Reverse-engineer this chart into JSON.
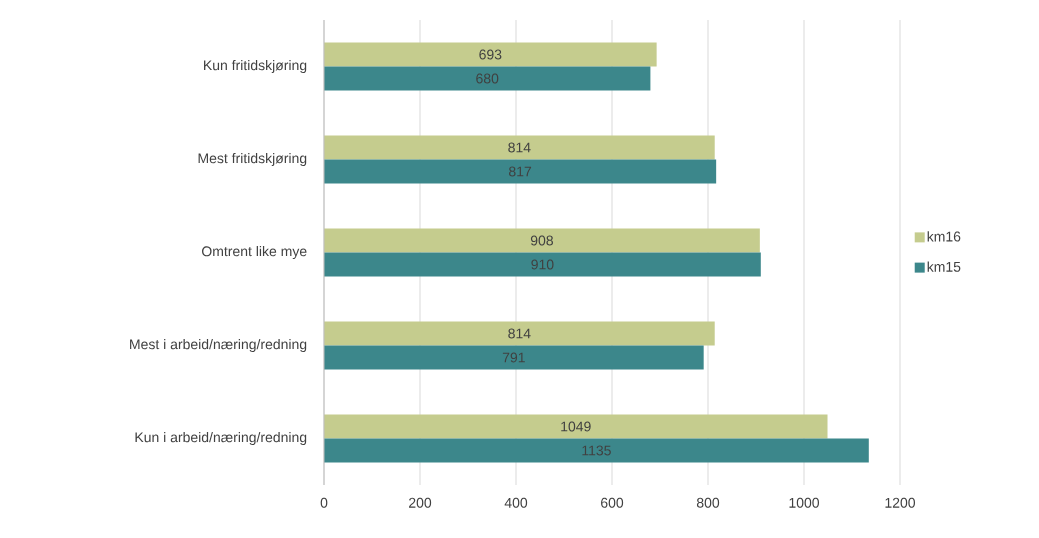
{
  "chart_data": {
    "type": "bar",
    "orientation": "horizontal",
    "categories": [
      "Kun fritidskjøring",
      "Mest fritidskjøring",
      "Omtrent like mye",
      "Mest i arbeid/næring/redning",
      "Kun i arbeid/næring/redning"
    ],
    "series": [
      {
        "name": "km16",
        "color": "#c5cc8e",
        "values": [
          693,
          814,
          908,
          814,
          1049
        ]
      },
      {
        "name": "km15",
        "color": "#3c878b",
        "values": [
          680,
          817,
          910,
          791,
          1135
        ]
      }
    ],
    "xlim": [
      0,
      1200
    ],
    "xticks": [
      0,
      200,
      400,
      600,
      800,
      1000,
      1200
    ],
    "grid": "x",
    "legend": "right",
    "data_labels": true
  }
}
